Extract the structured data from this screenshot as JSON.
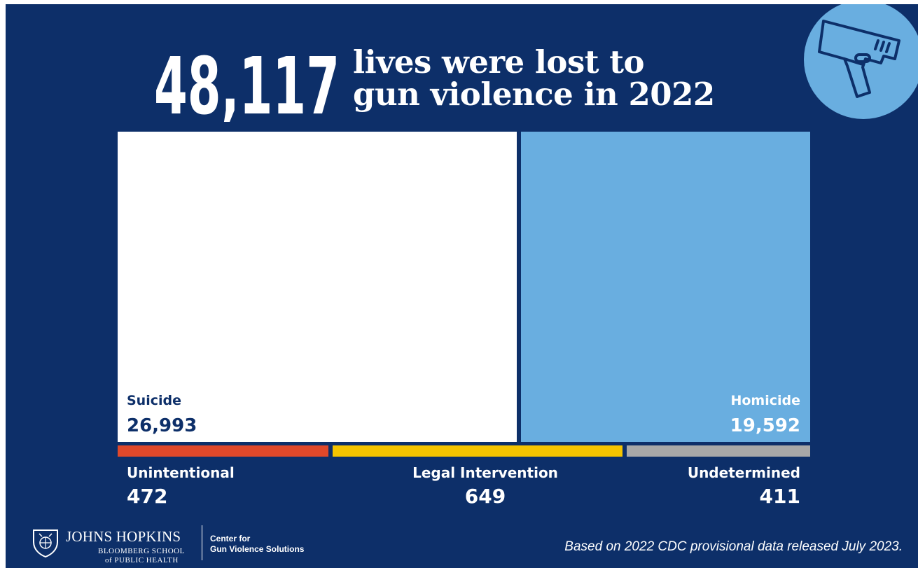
{
  "header": {
    "count": "48,117",
    "headline_line1": "lives were lost to",
    "headline_line2": "gun violence in 2022"
  },
  "icon": {
    "name": "handgun-icon"
  },
  "colors": {
    "background": "#0d2f69",
    "suicide": "#ffffff",
    "homicide": "#69aee0",
    "unintentional": "#e0482a",
    "legal_intervention": "#f5c400",
    "undetermined": "#a8a8a8",
    "text_dark": "#0d2f69",
    "text_light": "#ffffff"
  },
  "chart_data": {
    "type": "treemap",
    "total": 48117,
    "categories": [
      {
        "name": "Suicide",
        "value": 26993,
        "label": "26,993"
      },
      {
        "name": "Homicide",
        "value": 19592,
        "label": "19,592"
      },
      {
        "name": "Unintentional",
        "value": 472,
        "label": "472"
      },
      {
        "name": "Legal Intervention",
        "value": 649,
        "label": "649"
      },
      {
        "name": "Undetermined",
        "value": 411,
        "label": "411"
      }
    ]
  },
  "footer": {
    "org_name": "JOHNS HOPKINS",
    "org_sub1": "BLOOMBERG SCHOOL",
    "org_sub2": "of PUBLIC HEALTH",
    "center_line1": "Center for",
    "center_line2": "Gun Violence Solutions",
    "source": "Based on 2022 CDC provisional data released July 2023."
  }
}
